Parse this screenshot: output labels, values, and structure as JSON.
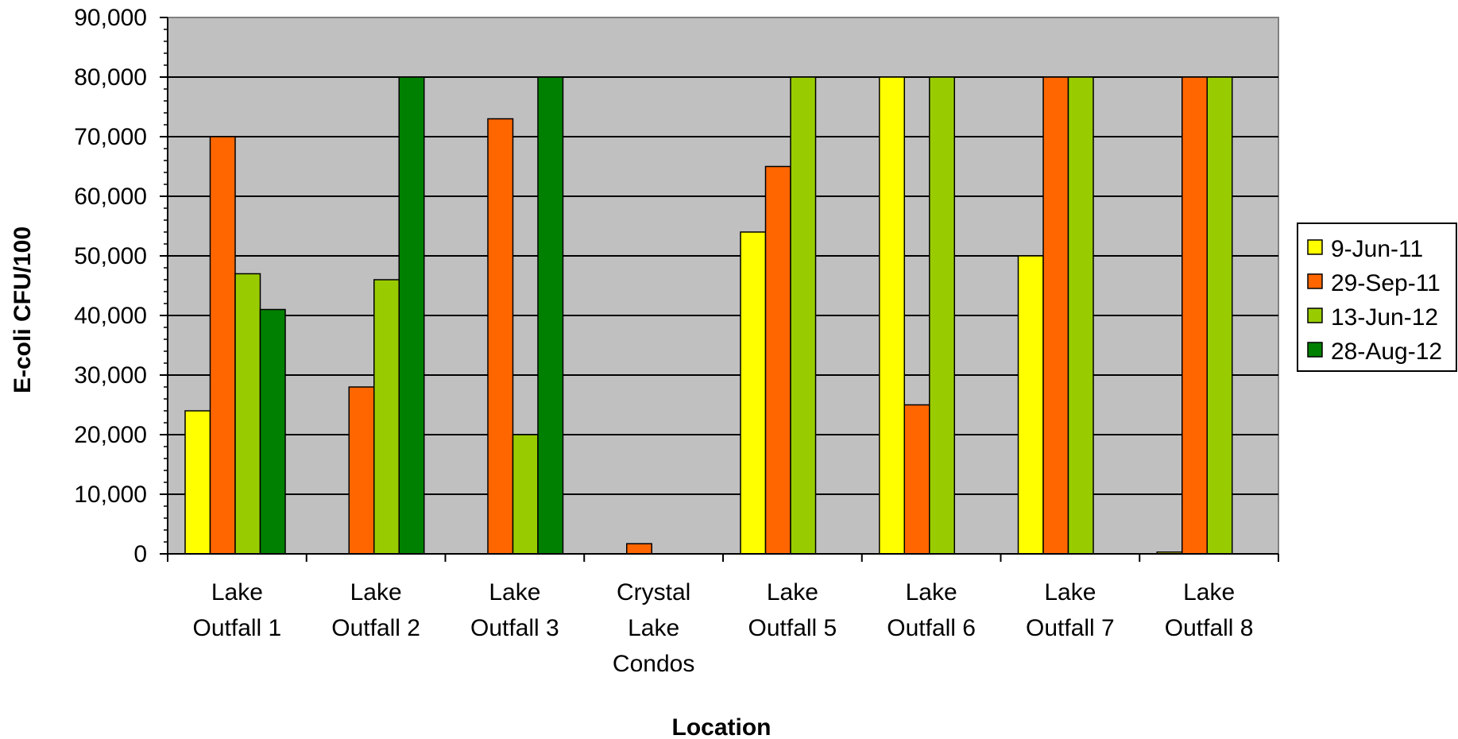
{
  "chart_data": {
    "type": "bar",
    "title": "",
    "xlabel": "Location",
    "ylabel": "E-coli CFU/100",
    "ylim": [
      0,
      90000
    ],
    "ytick_step": 10000,
    "ytick_labels": [
      "0",
      "10,000",
      "20,000",
      "30,000",
      "40,000",
      "50,000",
      "60,000",
      "70,000",
      "80,000",
      "90,000"
    ],
    "grid": true,
    "legend_position": "right",
    "categories": [
      [
        "Lake",
        "Outfall 1"
      ],
      [
        "Lake",
        "Outfall 2"
      ],
      [
        "Lake",
        "Outfall 3"
      ],
      [
        "Crystal",
        "Lake",
        "Condos"
      ],
      [
        "Lake",
        "Outfall 5"
      ],
      [
        "Lake",
        "Outfall 6"
      ],
      [
        "Lake",
        "Outfall 7"
      ],
      [
        "Lake",
        "Outfall 8"
      ]
    ],
    "series": [
      {
        "name": "9-Jun-11",
        "color": "#FFFF00",
        "values": [
          24000,
          null,
          null,
          null,
          54000,
          80000,
          50000,
          300
        ]
      },
      {
        "name": "29-Sep-11",
        "color": "#FF6600",
        "values": [
          70000,
          28000,
          73000,
          1700,
          65000,
          25000,
          80000,
          80000
        ]
      },
      {
        "name": "13-Jun-12",
        "color": "#99CC00",
        "values": [
          47000,
          46000,
          20000,
          null,
          80000,
          80000,
          80000,
          80000
        ]
      },
      {
        "name": "28-Aug-12",
        "color": "#008000",
        "values": [
          41000,
          80000,
          80000,
          null,
          null,
          null,
          null,
          null
        ]
      }
    ],
    "plot_background": "#C0C0C0"
  }
}
